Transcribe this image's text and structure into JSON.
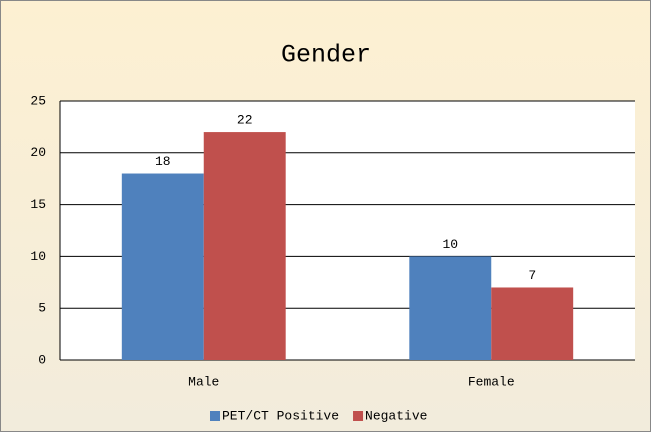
{
  "chart_data": {
    "type": "bar",
    "title": "Gender",
    "categories": [
      "Male",
      "Female"
    ],
    "series": [
      {
        "name": "PET/CT Positive",
        "color": "#4f81bd",
        "values": [
          18,
          10
        ]
      },
      {
        "name": "Negative",
        "color": "#c0504d",
        "values": [
          22,
          7
        ]
      }
    ],
    "ylim": [
      0,
      25
    ],
    "yticks": [
      0,
      5,
      10,
      15,
      20,
      25
    ],
    "grid": true,
    "legend": "bottom"
  }
}
